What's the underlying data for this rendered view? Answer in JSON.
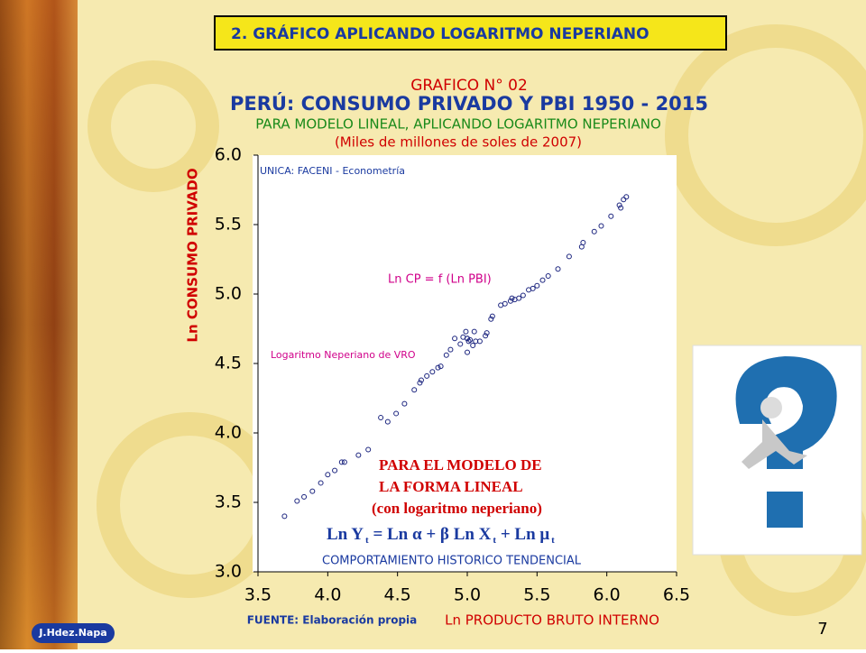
{
  "slide_title": "2. GRÁFICO APLICANDO LOGARITMO NEPERIANO",
  "author": "J.Hdez.Napa",
  "page_number": "7",
  "chart_data": {
    "type": "scatter",
    "chart_number": "GRAFICO N° 02",
    "title": "PERÚ: CONSUMO PRIVADO Y PBI 1950 - 2015",
    "subtitle": "PARA MODELO LINEAL, APLICANDO LOGARITMO NEPERIANO",
    "units": "(Miles de millones de soles de 2007)",
    "y_label": "Ln CONSUMO PRIVADO",
    "x_label": "Ln PRODUCTO BRUTO INTERNO",
    "source": "FUENTE: Elaboración propia",
    "annotations": [
      "UNICA: FACENI - Econometría",
      "Ln CP = f (Ln PBI)",
      "Logaritmo Neperiano de VRO",
      "COMPORTAMIENTO HISTORICO TENDENCIAL"
    ],
    "model_note": [
      "PARA EL MODELO DE",
      "LA FORMA LINEAL",
      "(con logaritmo neperiano)"
    ],
    "formula_parts": [
      "Ln Y",
      "t",
      " = Ln α  +  β  Ln X",
      "t",
      " +  Ln μ",
      "t"
    ],
    "color": "#1a237e",
    "xlim": [
      3.5,
      6.5
    ],
    "ylim": [
      3.0,
      6.0
    ],
    "xticks": [
      3.5,
      {
        "value": 4,
        "label": "4.0"
      },
      4.5,
      {
        "value": 5,
        "label": "5.0"
      },
      5.5,
      {
        "value": 6,
        "label": "6.0"
      },
      6.5
    ],
    "yticks": [
      {
        "value": 3,
        "label": "3.0"
      },
      3.5,
      {
        "value": 4,
        "label": "4.0"
      },
      4.5,
      {
        "value": 5,
        "label": "5.0"
      },
      5.5,
      {
        "value": 6,
        "label": "6.0"
      }
    ],
    "x": [
      3.69,
      3.78,
      3.83,
      3.89,
      3.95,
      4.0,
      4.05,
      4.1,
      4.12,
      4.22,
      4.29,
      4.38,
      4.43,
      4.49,
      4.55,
      4.62,
      4.66,
      4.67,
      4.71,
      4.75,
      4.79,
      4.81,
      4.85,
      4.88,
      4.91,
      4.95,
      4.97,
      4.99,
      5.0,
      5.01,
      5.0,
      5.0,
      5.02,
      5.05,
      5.04,
      5.09,
      5.06,
      5.13,
      5.14,
      5.17,
      5.18,
      5.24,
      5.27,
      5.31,
      5.32,
      5.34,
      5.37,
      5.4,
      5.44,
      5.47,
      5.5,
      5.54,
      5.58,
      5.65,
      5.73,
      5.82,
      5.83,
      5.91,
      5.96,
      6.03,
      6.09,
      6.1,
      6.12,
      6.14
    ],
    "values": [
      3.4,
      3.51,
      3.54,
      3.58,
      3.64,
      3.7,
      3.73,
      3.79,
      3.79,
      3.84,
      3.88,
      4.11,
      4.08,
      4.14,
      4.21,
      4.31,
      4.36,
      4.38,
      4.41,
      4.44,
      4.47,
      4.48,
      4.56,
      4.6,
      4.68,
      4.64,
      4.69,
      4.73,
      4.68,
      4.66,
      4.58,
      4.68,
      4.67,
      4.73,
      4.63,
      4.66,
      4.66,
      4.7,
      4.72,
      4.82,
      4.84,
      4.92,
      4.93,
      4.95,
      4.97,
      4.96,
      4.97,
      4.99,
      5.03,
      5.04,
      5.06,
      5.1,
      5.13,
      5.18,
      5.27,
      5.34,
      5.37,
      5.45,
      5.49,
      5.56,
      5.64,
      5.62,
      5.68,
      5.7
    ]
  }
}
